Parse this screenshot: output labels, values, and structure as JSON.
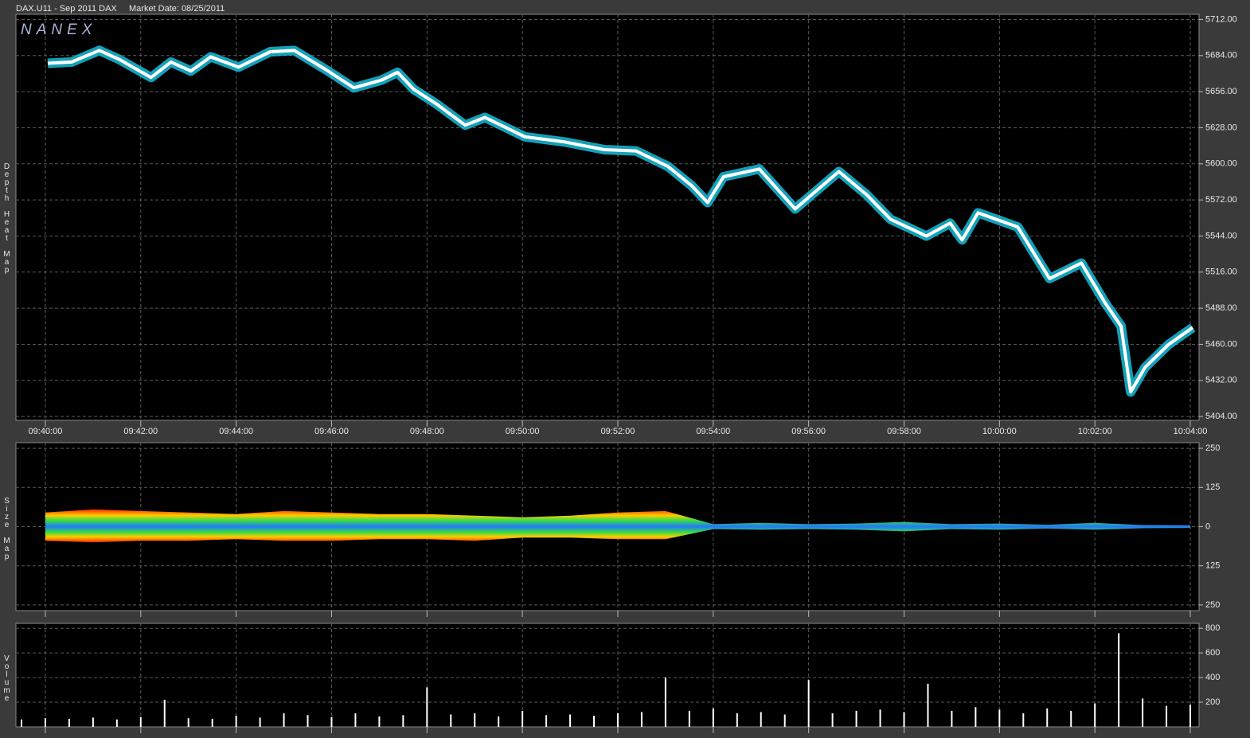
{
  "chart_data": [
    {
      "type": "line",
      "title": "DAX.U11 - Sep 2011 DAX",
      "subtitle": "Market Date: 08/25/2011",
      "annotation": "NANEX",
      "ylabel": "Depth Heat Map",
      "x": [
        "09:40:03",
        "09:40:33",
        "09:41:08",
        "09:41:33",
        "09:42:13",
        "09:42:38",
        "09:43:03",
        "09:43:28",
        "09:44:03",
        "09:44:43",
        "09:45:13",
        "09:45:53",
        "09:46:28",
        "09:47:03",
        "09:47:23",
        "09:47:43",
        "09:48:13",
        "09:48:48",
        "09:49:13",
        "09:50:03",
        "09:50:53",
        "09:51:43",
        "09:52:23",
        "09:53:03",
        "09:53:33",
        "09:53:53",
        "09:54:13",
        "09:54:58",
        "09:55:43",
        "09:56:38",
        "09:57:13",
        "09:57:43",
        "09:58:28",
        "09:58:58",
        "09:59:13",
        "09:59:33",
        "10:00:23",
        "10:01:03",
        "10:01:43",
        "10:02:13",
        "10:02:33",
        "10:02:45",
        "10:03:03",
        "10:03:33",
        "10:04:03"
      ],
      "values": [
        5678,
        5679,
        5688,
        5681,
        5667,
        5679,
        5672,
        5683,
        5675,
        5687,
        5688,
        5673,
        5659,
        5665,
        5671,
        5658,
        5646,
        5630,
        5636,
        5621,
        5617,
        5611,
        5610,
        5598,
        5583,
        5570,
        5590,
        5596,
        5565,
        5594,
        5576,
        5557,
        5544,
        5554,
        5541,
        5562,
        5551,
        5511,
        5523,
        5492,
        5474,
        5423,
        5442,
        5460,
        5473
      ],
      "color": "#ffffff",
      "band_color": "#19c8e6",
      "xlim": [
        "09:39:23",
        "10:04:11"
      ],
      "xticks": [
        "09:40:00",
        "09:42:00",
        "09:44:00",
        "09:46:00",
        "09:48:00",
        "09:50:00",
        "09:52:00",
        "09:54:00",
        "09:56:00",
        "09:58:00",
        "10:00:00",
        "10:02:00",
        "10:04:00"
      ],
      "ylim": [
        5401,
        5716
      ],
      "yticks": [
        {
          "value": 5712,
          "label": "5712.00"
        },
        {
          "value": 5684,
          "label": "5684.00"
        },
        {
          "value": 5656,
          "label": "5656.00"
        },
        {
          "value": 5628,
          "label": "5628.00"
        },
        {
          "value": 5600,
          "label": "5600.00"
        },
        {
          "value": 5572,
          "label": "5572.00"
        },
        {
          "value": 5544,
          "label": "5544.00"
        },
        {
          "value": 5516,
          "label": "5516.00"
        },
        {
          "value": 5488,
          "label": "5488.00"
        },
        {
          "value": 5460,
          "label": "5460.00"
        },
        {
          "value": 5432,
          "label": "5432.00"
        },
        {
          "value": 5404,
          "label": "5404.00"
        }
      ],
      "grid": true
    },
    {
      "type": "area",
      "ylabel": "Size Map",
      "x": [
        "09:40:00",
        "09:41:00",
        "09:42:00",
        "09:43:00",
        "09:44:00",
        "09:45:00",
        "09:46:00",
        "09:47:00",
        "09:48:00",
        "09:49:00",
        "09:50:00",
        "09:51:00",
        "09:52:00",
        "09:53:00",
        "09:54:00",
        "09:55:00",
        "09:56:00",
        "09:57:00",
        "09:58:00",
        "09:59:00",
        "10:00:00",
        "10:01:00",
        "10:02:00",
        "10:03:00",
        "10:04:00"
      ],
      "series": [
        {
          "values": [
            45,
            55,
            50,
            45,
            40,
            50,
            45,
            40,
            40,
            35,
            30,
            35,
            45,
            50,
            8,
            12,
            8,
            10,
            15,
            8,
            10,
            6,
            12,
            5,
            4
          ]
        },
        {
          "values": [
            -45,
            -50,
            -45,
            -45,
            -40,
            -45,
            -45,
            -40,
            -40,
            -45,
            -35,
            -35,
            -40,
            -40,
            -8,
            -10,
            -8,
            -10,
            -15,
            -8,
            -10,
            -6,
            -10,
            -5,
            -4
          ]
        }
      ],
      "ylim": [
        -268,
        268
      ],
      "yticks": [
        250,
        125,
        0,
        {
          "value": -125,
          "label": "125"
        },
        {
          "value": -250,
          "label": "250"
        }
      ],
      "grid": true
    },
    {
      "type": "bar",
      "ylabel": "Volume",
      "color": "#ffffff",
      "x": [
        "09:39:30",
        "09:40:00",
        "09:40:30",
        "09:41:00",
        "09:41:30",
        "09:42:00",
        "09:42:30",
        "09:43:00",
        "09:43:30",
        "09:44:00",
        "09:44:30",
        "09:45:00",
        "09:45:30",
        "09:46:00",
        "09:46:30",
        "09:47:00",
        "09:47:30",
        "09:48:00",
        "09:48:30",
        "09:49:00",
        "09:49:30",
        "09:50:00",
        "09:50:30",
        "09:51:00",
        "09:51:30",
        "09:52:00",
        "09:52:30",
        "09:53:00",
        "09:53:30",
        "09:54:00",
        "09:54:30",
        "09:55:00",
        "09:55:30",
        "09:56:00",
        "09:56:30",
        "09:57:00",
        "09:57:30",
        "09:58:00",
        "09:58:30",
        "09:59:00",
        "09:59:30",
        "10:00:00",
        "10:00:30",
        "10:01:00",
        "10:01:30",
        "10:02:00",
        "10:02:30",
        "10:03:00",
        "10:03:30",
        "10:04:00"
      ],
      "values": [
        60,
        70,
        65,
        75,
        60,
        80,
        220,
        70,
        65,
        90,
        75,
        110,
        95,
        80,
        110,
        85,
        95,
        320,
        100,
        110,
        85,
        130,
        95,
        100,
        90,
        110,
        120,
        400,
        130,
        150,
        110,
        120,
        100,
        380,
        110,
        130,
        140,
        120,
        350,
        130,
        160,
        140,
        110,
        150,
        130,
        190,
        760,
        230,
        170,
        180
      ],
      "ylim": [
        0,
        840
      ],
      "yticks": [
        200,
        400,
        600,
        800
      ],
      "grid": true
    }
  ]
}
